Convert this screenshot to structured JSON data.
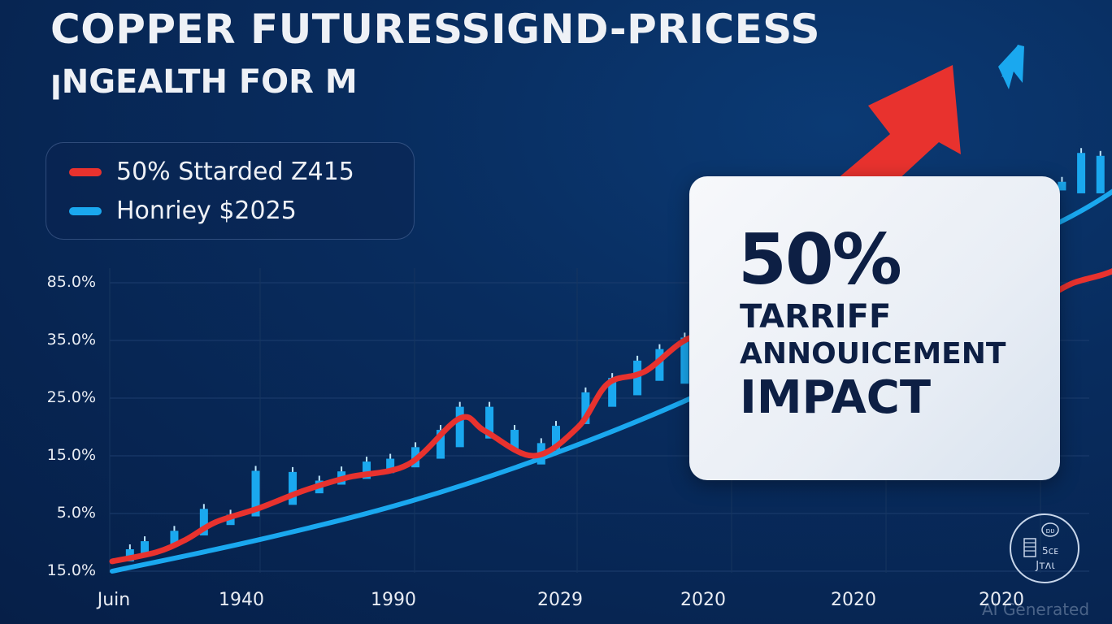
{
  "header": {
    "title": "COPPER FUTURESSIGND-PRICESS",
    "subtitle": "ꞁNGEALTH FOR M"
  },
  "legend": {
    "items": [
      {
        "label": "50% Sttarded Z415",
        "color": "#e8322e"
      },
      {
        "label": "Honriey $2025",
        "color": "#1aa8ef"
      }
    ]
  },
  "callout": {
    "headline": "50%",
    "line1": "TARRIFF",
    "line2": "ANNOUICEMENT",
    "line3": "IMPACT"
  },
  "watermark": "AI Generated",
  "logo": {
    "name": "ai-badge-logo",
    "glyphs": [
      "ɒʋ",
      "5ᴄᴇ",
      "Jᴛᴧι"
    ]
  },
  "colors": {
    "background": "#082c5e",
    "grid": "#1c3d6e",
    "red_series": "#e8322e",
    "blue_series": "#1aa8ef",
    "bars": "#1aa8ef",
    "callout_text": "#0d1f44"
  },
  "chart_data": {
    "type": "line",
    "title": "COPPER FUTURESSIGND-PRICESS",
    "subtitle": "ꞁNGEALTH FOR M",
    "xlabel": "",
    "ylabel": "",
    "x_ticks": [
      "Juin",
      "1940",
      "1990",
      "2029",
      "2020",
      "2020",
      "2020"
    ],
    "y_ticks": [
      "15.0%",
      "5.0%",
      "15.0%",
      "25.0%",
      "35.0%",
      "85.0%"
    ],
    "y_range_levels": [
      0,
      5
    ],
    "grid": true,
    "legend_position": "top-left",
    "note": "Values are expressed in y-tick levels (0 = bottom tick '15.0%', 5 = top tick '85.0%'); x in tick-index units (0 = 'Juin', 6 = last '2020').",
    "series": [
      {
        "name": "50% Sttarded Z415",
        "type": "line",
        "color": "#e8322e",
        "points": [
          [
            0.0,
            0.17
          ],
          [
            0.3,
            0.33
          ],
          [
            0.5,
            0.55
          ],
          [
            0.7,
            0.85
          ],
          [
            1.0,
            1.1
          ],
          [
            1.3,
            1.4
          ],
          [
            1.6,
            1.63
          ],
          [
            2.0,
            1.85
          ],
          [
            2.35,
            2.65
          ],
          [
            2.52,
            2.43
          ],
          [
            2.85,
            2.0
          ],
          [
            3.15,
            2.5
          ],
          [
            3.35,
            3.25
          ],
          [
            3.6,
            3.46
          ],
          [
            3.95,
            4.07
          ],
          [
            4.3,
            3.58
          ],
          [
            4.65,
            4.33
          ],
          [
            5.05,
            5.06
          ],
          [
            5.35,
            4.57
          ],
          [
            5.55,
            4.47
          ],
          [
            5.75,
            4.82
          ],
          [
            6.0,
            4.95
          ],
          [
            6.25,
            4.72
          ],
          [
            6.5,
            5.0
          ],
          [
            6.8,
            5.25
          ],
          [
            7.1,
            5.85
          ],
          [
            7.25,
            5.62
          ]
        ]
      },
      {
        "name": "Honriey $2025",
        "type": "line",
        "color": "#1aa8ef",
        "points": [
          [
            0.0,
            0.0
          ],
          [
            1.0,
            0.55
          ],
          [
            2.0,
            1.2
          ],
          [
            3.0,
            2.05
          ],
          [
            4.0,
            3.1
          ],
          [
            5.0,
            4.4
          ],
          [
            6.0,
            5.55
          ],
          [
            6.8,
            6.65
          ],
          [
            7.6,
            8.45
          ]
        ]
      },
      {
        "name": "bars",
        "type": "bar",
        "color": "#1aa8ef",
        "bars": [
          {
            "x": 0.12,
            "low": 0.17,
            "high": 0.38
          },
          {
            "x": 0.22,
            "low": 0.25,
            "high": 0.52
          },
          {
            "x": 0.42,
            "low": 0.45,
            "high": 0.7
          },
          {
            "x": 0.62,
            "low": 0.62,
            "high": 1.08
          },
          {
            "x": 0.8,
            "low": 0.8,
            "high": 0.98
          },
          {
            "x": 0.97,
            "low": 0.95,
            "high": 1.74
          },
          {
            "x": 1.22,
            "low": 1.15,
            "high": 1.72
          },
          {
            "x": 1.4,
            "low": 1.35,
            "high": 1.57
          },
          {
            "x": 1.55,
            "low": 1.5,
            "high": 1.73
          },
          {
            "x": 1.72,
            "low": 1.6,
            "high": 1.9
          },
          {
            "x": 1.88,
            "low": 1.7,
            "high": 1.95
          },
          {
            "x": 2.05,
            "low": 1.8,
            "high": 2.15
          },
          {
            "x": 2.22,
            "low": 1.95,
            "high": 2.45
          },
          {
            "x": 2.35,
            "low": 2.15,
            "high": 2.85
          },
          {
            "x": 2.55,
            "low": 2.3,
            "high": 2.85
          },
          {
            "x": 2.72,
            "low": 2.1,
            "high": 2.45
          },
          {
            "x": 2.9,
            "low": 1.85,
            "high": 2.22
          },
          {
            "x": 3.0,
            "low": 2.1,
            "high": 2.52
          },
          {
            "x": 3.2,
            "low": 2.55,
            "high": 3.1
          },
          {
            "x": 3.38,
            "low": 2.85,
            "high": 3.35
          },
          {
            "x": 3.55,
            "low": 3.05,
            "high": 3.65
          },
          {
            "x": 3.7,
            "low": 3.3,
            "high": 3.85
          },
          {
            "x": 3.87,
            "low": 3.25,
            "high": 4.05
          },
          {
            "x": 4.02,
            "low": 3.55,
            "high": 3.85
          },
          {
            "x": 4.2,
            "low": 3.05,
            "high": 3.5
          },
          {
            "x": 4.38,
            "low": 3.4,
            "high": 4.3
          },
          {
            "x": 4.52,
            "low": 3.65,
            "high": 4.52
          },
          {
            "x": 4.7,
            "low": 4.1,
            "high": 4.8
          },
          {
            "x": 4.88,
            "low": 4.25,
            "high": 5.45
          },
          {
            "x": 5.05,
            "low": 4.7,
            "high": 5.45
          },
          {
            "x": 5.2,
            "low": 4.6,
            "high": 5.2
          },
          {
            "x": 5.38,
            "low": 4.45,
            "high": 4.72
          },
          {
            "x": 5.55,
            "low": 4.3,
            "high": 4.8
          },
          {
            "x": 5.72,
            "low": 4.65,
            "high": 5.15
          },
          {
            "x": 5.88,
            "low": 4.72,
            "high": 5.22
          },
          {
            "x": 6.05,
            "low": 4.8,
            "high": 5.28
          },
          {
            "x": 6.2,
            "low": 4.75,
            "high": 5.28
          },
          {
            "x": 6.42,
            "low": 6.6,
            "high": 6.75
          },
          {
            "x": 6.55,
            "low": 6.55,
            "high": 7.25
          },
          {
            "x": 6.68,
            "low": 6.55,
            "high": 7.2
          },
          {
            "x": 6.85,
            "low": 6.55,
            "high": 7.55
          },
          {
            "x": 7.2,
            "low": 6.55,
            "high": 6.95
          },
          {
            "x": 7.3,
            "low": 6.55,
            "high": 7.3
          },
          {
            "x": 7.48,
            "low": 6.75,
            "high": 7.65
          },
          {
            "x": 7.6,
            "low": 6.95,
            "high": 7.4
          }
        ]
      }
    ],
    "annotations": [
      {
        "type": "arrow",
        "color": "#e8322e",
        "direction": "up-right",
        "label": ""
      },
      {
        "type": "arrow",
        "color": "#1aa8ef",
        "direction": "up-right",
        "label": ""
      },
      {
        "type": "callout",
        "text": "50% TARRIFF ANNOUICEMENT IMPACT"
      }
    ]
  }
}
